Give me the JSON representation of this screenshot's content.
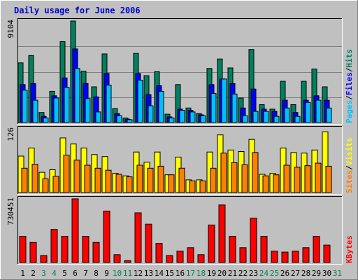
{
  "colors": {
    "background": "#c0c0c0",
    "plot_bg": "#c0c0c0",
    "border_light": "#ffffff",
    "border_dark": "#808080",
    "title": "#0000cc",
    "hits": "#00805c",
    "files": "#0000ff",
    "pages": "#00c0ff",
    "visits": "#ffff00",
    "sites": "#ff8000",
    "kbytes": "#ff0000",
    "grid": "#808080",
    "weekend_label": "#00805c",
    "weekday_label": "#000000",
    "legend_sep": "#000000"
  },
  "chart_data": {
    "type": "bar",
    "title": "Daily usage for June 2006",
    "x": [
      1,
      2,
      3,
      4,
      5,
      6,
      7,
      8,
      9,
      10,
      11,
      12,
      13,
      14,
      15,
      16,
      17,
      18,
      19,
      20,
      21,
      22,
      23,
      24,
      25,
      26,
      27,
      28,
      29,
      30,
      31
    ],
    "weekend_days": [
      3,
      4,
      10,
      11,
      17,
      18,
      24,
      25,
      31
    ],
    "panels": [
      {
        "name": "hits-files-pages",
        "max_label": "9104",
        "ymax": 9104,
        "legend": [
          "Pages",
          "/",
          "Files",
          "/",
          "Hits"
        ],
        "legend_colors": [
          "pages",
          "legend_sep",
          "files",
          "legend_sep",
          "hits"
        ],
        "series": [
          {
            "name": "Hits",
            "color": "hits",
            "values": [
              5350,
              6000,
              900,
              2800,
              7250,
              9104,
              4600,
              3200,
              6150,
              1250,
              400,
              6200,
              4200,
              4550,
              750,
              3400,
              1300,
              800,
              4850,
              5700,
              4900,
              2200,
              6550,
              1600,
              1200,
              3700,
              1600,
              3700,
              4800,
              3200,
              0
            ]
          },
          {
            "name": "Files",
            "color": "files",
            "values": [
              3400,
              3500,
              550,
              2400,
              4000,
              6600,
              3500,
              2300,
              4400,
              800,
              300,
              4400,
              2500,
              3300,
              500,
              1200,
              1100,
              700,
              3400,
              3900,
              3500,
              1300,
              3000,
              1200,
              1000,
              2000,
              900,
              2000,
              2400,
              2000,
              0
            ]
          },
          {
            "name": "Pages",
            "color": "pages",
            "values": [
              2900,
              2000,
              400,
              2200,
              3150,
              4850,
              2150,
              950,
              3350,
              600,
              250,
              3800,
              1500,
              2800,
              400,
              1100,
              950,
              600,
              2600,
              3900,
              2550,
              600,
              1000,
              1000,
              550,
              1300,
              550,
              1800,
              2000,
              1300,
              0
            ]
          }
        ]
      },
      {
        "name": "visits-sites",
        "max_label": "126",
        "ymax": 126,
        "legend": [
          "Sites",
          "/",
          "Visits"
        ],
        "legend_colors": [
          "sites",
          "legend_sep",
          "visits"
        ],
        "series": [
          {
            "name": "Visits",
            "color": "visits",
            "values": [
              72,
              88,
              40,
              45,
              108,
              96,
              88,
              75,
              71,
              38,
              33,
              80,
              60,
              80,
              35,
              70,
              25,
              25,
              80,
              114,
              84,
              81,
              105,
              36,
              38,
              88,
              79,
              78,
              84,
              120,
              0
            ]
          },
          {
            "name": "Sites",
            "color": "sites",
            "values": [
              48,
              56,
              27,
              32,
              74,
              64,
              54,
              48,
              44,
              36,
              31,
              54,
              48,
              52,
              35,
              48,
              23,
              23,
              48,
              78,
              59,
              55,
              79,
              33,
              35,
              54,
              50,
              53,
              58,
              52,
              0
            ]
          }
        ]
      },
      {
        "name": "kbytes",
        "max_label": "730451",
        "ymax": 730451,
        "legend": [
          "KBytes"
        ],
        "legend_colors": [
          "kbytes"
        ],
        "series": [
          {
            "name": "KBytes",
            "color": "kbytes",
            "values": [
              300000,
              230000,
              80000,
              380000,
              300000,
              730451,
              300000,
              230000,
              590000,
              90000,
              20000,
              570000,
              440000,
              220000,
              80000,
              130000,
              170000,
              90000,
              430000,
              660000,
              300000,
              170000,
              510000,
              300000,
              130000,
              120000,
              130000,
              170000,
              300000,
              200000,
              0
            ]
          }
        ]
      }
    ]
  }
}
